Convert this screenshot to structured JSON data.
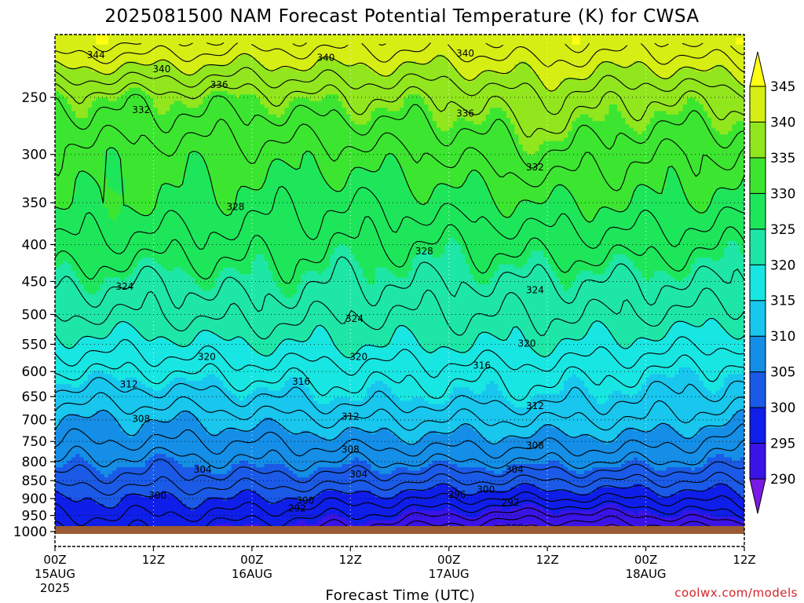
{
  "title": "2025081500 NAM Forecast Potential Temperature (K) for CWSA",
  "credit": "coolwx.com/models",
  "colors": {
    "ground": "#9a5a32",
    "bins": [
      "#7a1ae6",
      "#3a14e6",
      "#0f1ee8",
      "#1a5ae6",
      "#148ee6",
      "#18c6ee",
      "#18e6e2",
      "#1ee6a6",
      "#1ee65a",
      "#3ce630",
      "#92e61e",
      "#d6ee14",
      "#ffff14"
    ]
  },
  "chart_data": {
    "type": "contour",
    "title": "2025081500 NAM Forecast Potential Temperature (K) for CWSA",
    "xlabel": "Forecast Time (UTC)",
    "ylabel": "",
    "y_scale": "log-pressure",
    "y_reversed": true,
    "y_ticks": [
      1000,
      950,
      900,
      850,
      800,
      750,
      700,
      650,
      600,
      550,
      500,
      450,
      400,
      350,
      300,
      250
    ],
    "x_forecast_hours": [
      0,
      12,
      24,
      36,
      48,
      60,
      72,
      84
    ],
    "x_ticks": [
      {
        "top": "00Z",
        "date": "15AUG",
        "year": "2025"
      },
      {
        "top": "12Z",
        "date": "",
        "year": ""
      },
      {
        "top": "00Z",
        "date": "16AUG",
        "year": ""
      },
      {
        "top": "12Z",
        "date": "",
        "year": ""
      },
      {
        "top": "00Z",
        "date": "17AUG",
        "year": ""
      },
      {
        "top": "12Z",
        "date": "",
        "year": ""
      },
      {
        "top": "00Z",
        "date": "18AUG",
        "year": ""
      },
      {
        "top": "12Z",
        "date": "",
        "year": ""
      }
    ],
    "colorbar_levels": [
      290,
      295,
      300,
      305,
      310,
      315,
      320,
      325,
      330,
      335,
      340,
      345
    ],
    "grid": true,
    "contour_interval_k": 2,
    "profile_levels_hpa": [
      1000,
      950,
      900,
      850,
      800,
      750,
      700,
      650,
      600,
      550,
      500,
      450,
      400,
      350,
      300,
      250,
      210
    ],
    "profile_theta_k": [
      {
        "hour": 0,
        "theta": [
          296,
          298,
          300,
          303,
          306,
          308,
          310,
          313,
          316,
          319,
          322,
          325,
          328,
          330,
          331,
          335,
          344
        ]
      },
      {
        "hour": 12,
        "theta": [
          296,
          298,
          300,
          303,
          305,
          308,
          310,
          313,
          316,
          319,
          322,
          324,
          327,
          330,
          331,
          335,
          344
        ]
      },
      {
        "hour": 24,
        "theta": [
          294,
          297,
          300,
          303,
          306,
          308,
          311,
          314,
          317,
          320,
          323,
          325,
          327,
          329,
          331,
          335,
          343
        ]
      },
      {
        "hour": 36,
        "theta": [
          293,
          296,
          299,
          303,
          306,
          309,
          312,
          315,
          317,
          320,
          322,
          324,
          326,
          328,
          331,
          336,
          343
        ]
      },
      {
        "hour": 48,
        "theta": [
          290,
          294,
          298,
          302,
          306,
          309,
          312,
          315,
          317,
          320,
          322,
          324,
          326,
          329,
          332,
          336,
          343
        ]
      },
      {
        "hour": 60,
        "theta": [
          289,
          293,
          298,
          302,
          306,
          309,
          312,
          315,
          317,
          320,
          322,
          324,
          327,
          330,
          334,
          338,
          344
        ]
      },
      {
        "hour": 72,
        "theta": [
          290,
          294,
          298,
          302,
          306,
          309,
          312,
          314,
          316,
          319,
          322,
          324,
          327,
          330,
          332,
          336,
          343
        ]
      },
      {
        "hour": 84,
        "theta": [
          291,
          296,
          299,
          302,
          305,
          307,
          310,
          313,
          315,
          318,
          321,
          324,
          326,
          329,
          332,
          337,
          345
        ]
      }
    ],
    "contour_labels": [
      {
        "value": "344",
        "hour": 5.0,
        "hpa": 218
      },
      {
        "value": "340",
        "hour": 13.0,
        "hpa": 228
      },
      {
        "value": "340",
        "hour": 33.0,
        "hpa": 220
      },
      {
        "value": "340",
        "hour": 50.0,
        "hpa": 217
      },
      {
        "value": "336",
        "hour": 20.0,
        "hpa": 240
      },
      {
        "value": "336",
        "hour": 50.0,
        "hpa": 263
      },
      {
        "value": "332",
        "hour": 10.5,
        "hpa": 260
      },
      {
        "value": "332",
        "hour": 58.5,
        "hpa": 312
      },
      {
        "value": "328",
        "hour": 22.0,
        "hpa": 354
      },
      {
        "value": "328",
        "hour": 45.0,
        "hpa": 408
      },
      {
        "value": "324",
        "hour": 8.5,
        "hpa": 457
      },
      {
        "value": "324",
        "hour": 36.5,
        "hpa": 506
      },
      {
        "value": "324",
        "hour": 58.5,
        "hpa": 462
      },
      {
        "value": "320",
        "hour": 18.5,
        "hpa": 572
      },
      {
        "value": "320",
        "hour": 37.0,
        "hpa": 572
      },
      {
        "value": "320",
        "hour": 57.5,
        "hpa": 548
      },
      {
        "value": "316",
        "hour": 30.0,
        "hpa": 619
      },
      {
        "value": "316",
        "hour": 52.0,
        "hpa": 588
      },
      {
        "value": "312",
        "hour": 9.0,
        "hpa": 624
      },
      {
        "value": "312",
        "hour": 36.0,
        "hpa": 692
      },
      {
        "value": "312",
        "hour": 58.5,
        "hpa": 669
      },
      {
        "value": "308",
        "hour": 10.5,
        "hpa": 697
      },
      {
        "value": "308",
        "hour": 36.0,
        "hpa": 769
      },
      {
        "value": "308",
        "hour": 58.5,
        "hpa": 759
      },
      {
        "value": "304",
        "hour": 18.0,
        "hpa": 819
      },
      {
        "value": "304",
        "hour": 37.0,
        "hpa": 832
      },
      {
        "value": "304",
        "hour": 56.0,
        "hpa": 819
      },
      {
        "value": "300",
        "hour": 12.5,
        "hpa": 890
      },
      {
        "value": "300",
        "hour": 30.5,
        "hpa": 905
      },
      {
        "value": "300",
        "hour": 52.5,
        "hpa": 873
      },
      {
        "value": "296",
        "hour": 10.0,
        "hpa": 992
      },
      {
        "value": "296",
        "hour": 49.0,
        "hpa": 888
      },
      {
        "value": "292",
        "hour": 29.5,
        "hpa": 927
      },
      {
        "value": "292",
        "hour": 55.5,
        "hpa": 910
      },
      {
        "value": "288",
        "hour": 56.0,
        "hpa": 988
      }
    ]
  }
}
